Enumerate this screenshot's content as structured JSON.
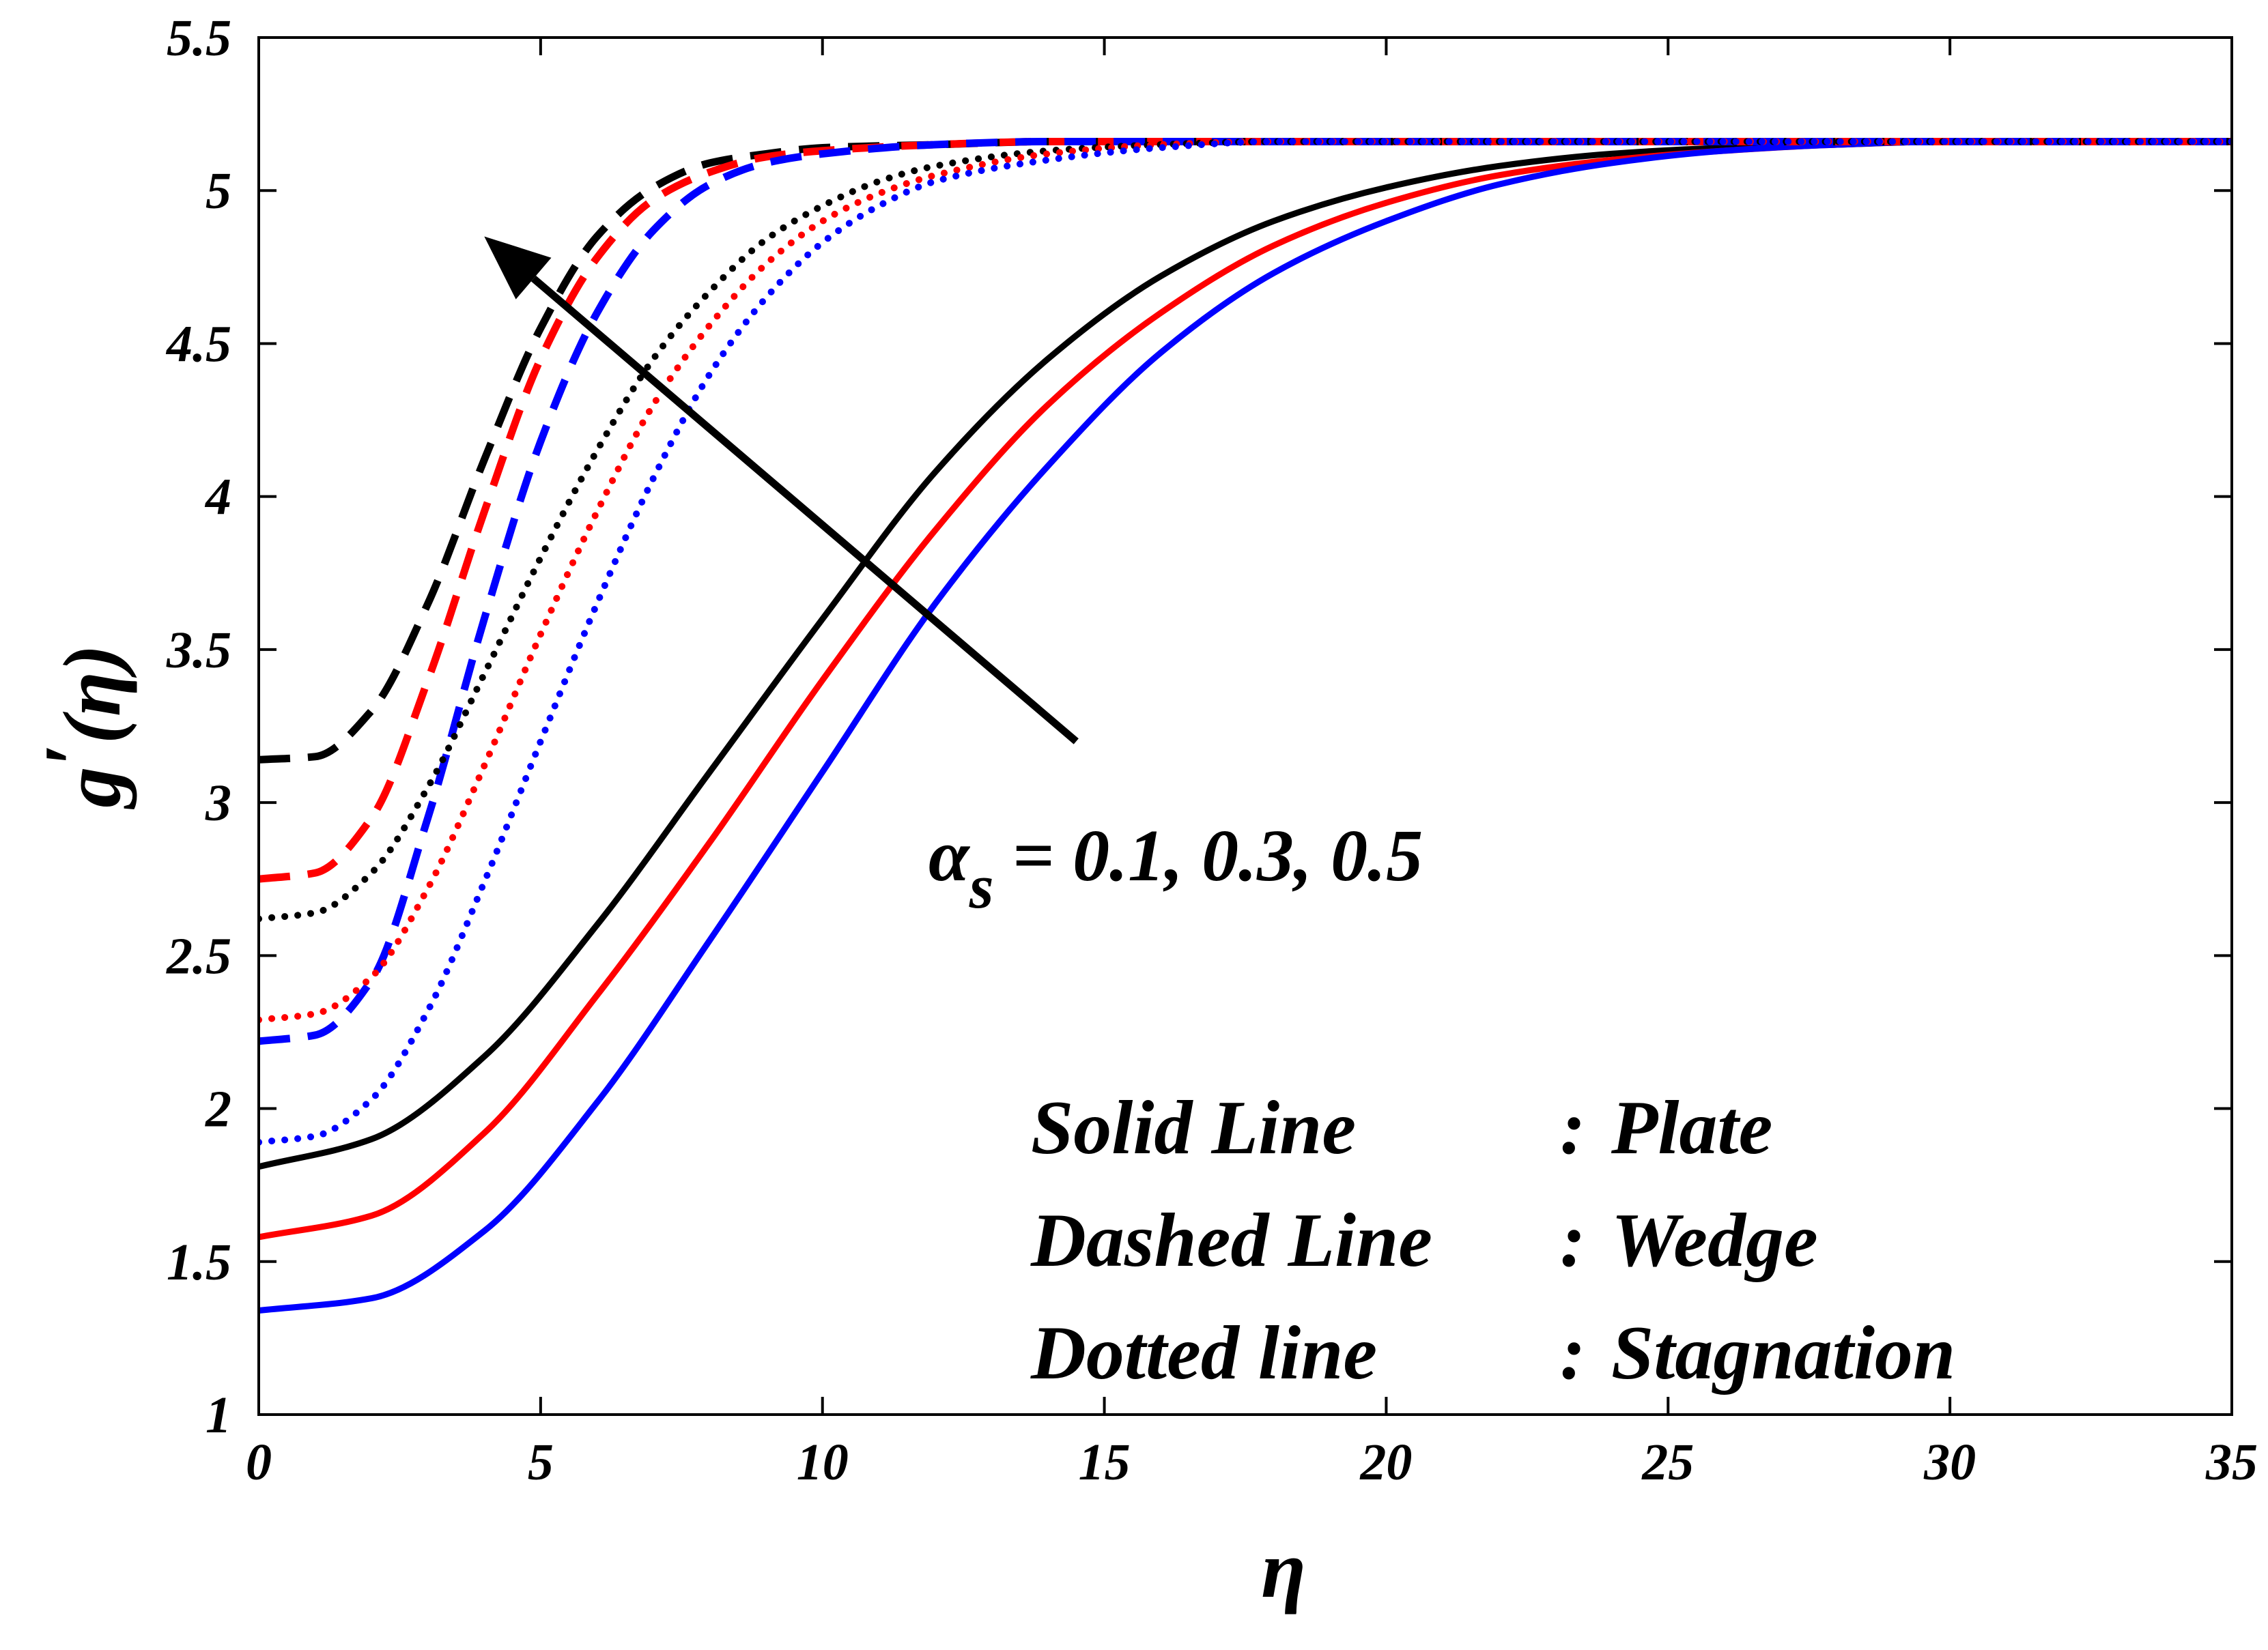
{
  "chart_data": {
    "type": "line",
    "title": "",
    "xlabel": "η",
    "ylabel_main": "g",
    "ylabel_prime": "′",
    "ylabel_arg": "(η)",
    "xlim": [
      0,
      35
    ],
    "ylim": [
      1,
      5.5
    ],
    "x_ticks": [
      0,
      5,
      10,
      15,
      20,
      25,
      30,
      35
    ],
    "y_ticks": [
      1,
      1.5,
      2,
      2.5,
      3,
      3.5,
      4,
      4.5,
      5,
      5.5
    ],
    "x_tick_labels": [
      "0",
      "5",
      "10",
      "15",
      "20",
      "25",
      "30",
      "35"
    ],
    "y_tick_labels": [
      "1",
      "1.5",
      "2",
      "2.5",
      "3",
      "3.5",
      "4",
      "4.5",
      "5",
      "5.5"
    ],
    "grid": false,
    "colors": {
      "black": "#000000",
      "red": "#ff0000",
      "blue": "#0000ff"
    },
    "series": [
      {
        "name": "Plate, αs = 0.5",
        "geometry": "Plate",
        "alpha_s": 0.5,
        "style": "solid",
        "color": "#000000",
        "x": [
          0,
          2,
          4,
          6,
          8,
          10,
          12,
          14,
          16,
          18,
          20,
          22,
          24,
          26,
          28,
          30,
          35
        ],
        "y": [
          1.81,
          1.9,
          2.17,
          2.6,
          3.1,
          3.6,
          4.08,
          4.45,
          4.72,
          4.9,
          5.01,
          5.08,
          5.12,
          5.14,
          5.15,
          5.16,
          5.16
        ]
      },
      {
        "name": "Plate, αs = 0.3",
        "geometry": "Plate",
        "alpha_s": 0.3,
        "style": "solid",
        "color": "#ff0000",
        "x": [
          0,
          2,
          4,
          6,
          8,
          10,
          12,
          14,
          16,
          18,
          20,
          22,
          24,
          26,
          28,
          30,
          35
        ],
        "y": [
          1.58,
          1.65,
          1.92,
          2.37,
          2.87,
          3.4,
          3.89,
          4.3,
          4.6,
          4.82,
          4.96,
          5.05,
          5.1,
          5.13,
          5.15,
          5.16,
          5.16
        ]
      },
      {
        "name": "Plate, αs = 0.1",
        "geometry": "Plate",
        "alpha_s": 0.1,
        "style": "solid",
        "color": "#0000ff",
        "x": [
          0,
          2,
          4,
          6,
          8,
          10,
          12,
          14,
          16,
          18,
          20,
          22,
          24,
          26,
          28,
          30,
          35
        ],
        "y": [
          1.34,
          1.38,
          1.6,
          2.02,
          2.55,
          3.1,
          3.65,
          4.1,
          4.47,
          4.73,
          4.9,
          5.02,
          5.09,
          5.13,
          5.15,
          5.16,
          5.16
        ]
      },
      {
        "name": "Wedge, αs = 0.5",
        "geometry": "Wedge",
        "alpha_s": 0.5,
        "style": "dashed",
        "color": "#000000",
        "x": [
          0,
          1,
          2,
          3,
          4,
          5,
          6,
          7,
          8,
          9,
          10,
          12,
          14,
          16,
          20,
          25,
          35
        ],
        "y": [
          3.14,
          3.15,
          3.3,
          3.65,
          4.12,
          4.55,
          4.85,
          5.01,
          5.09,
          5.12,
          5.14,
          5.15,
          5.16,
          5.16,
          5.16,
          5.16,
          5.16
        ]
      },
      {
        "name": "Wedge, αs = 0.3",
        "geometry": "Wedge",
        "alpha_s": 0.3,
        "style": "dashed",
        "color": "#ff0000",
        "x": [
          0,
          1,
          2,
          3,
          4,
          5,
          6,
          7,
          8,
          9,
          10,
          12,
          14,
          16,
          20,
          25,
          35
        ],
        "y": [
          2.75,
          2.77,
          2.95,
          3.4,
          3.95,
          4.45,
          4.78,
          4.97,
          5.06,
          5.11,
          5.13,
          5.15,
          5.16,
          5.16,
          5.16,
          5.16,
          5.16
        ]
      },
      {
        "name": "Wedge, αs = 0.1",
        "geometry": "Wedge",
        "alpha_s": 0.1,
        "style": "dashed",
        "color": "#0000ff",
        "x": [
          0,
          1,
          2,
          3,
          4,
          5,
          6,
          7,
          8,
          9,
          10,
          12,
          14,
          16,
          20,
          25,
          35
        ],
        "y": [
          2.22,
          2.24,
          2.42,
          2.95,
          3.6,
          4.18,
          4.6,
          4.87,
          5.02,
          5.09,
          5.12,
          5.15,
          5.16,
          5.16,
          5.16,
          5.16,
          5.16
        ]
      },
      {
        "name": "Stagnation, αs = 0.5",
        "geometry": "Stagnation",
        "alpha_s": 0.5,
        "style": "dotted",
        "color": "#000000",
        "x": [
          0,
          1,
          2,
          3,
          4,
          5,
          6,
          7,
          8,
          9,
          10,
          11,
          12,
          14,
          16,
          18,
          20,
          25,
          35
        ],
        "y": [
          2.62,
          2.64,
          2.77,
          3.05,
          3.42,
          3.8,
          4.15,
          4.45,
          4.67,
          4.84,
          4.95,
          5.03,
          5.08,
          5.13,
          5.15,
          5.16,
          5.16,
          5.16,
          5.16
        ]
      },
      {
        "name": "Stagnation, αs = 0.3",
        "geometry": "Stagnation",
        "alpha_s": 0.3,
        "style": "dotted",
        "color": "#ff0000",
        "x": [
          0,
          1,
          2,
          3,
          4,
          5,
          6,
          7,
          8,
          9,
          10,
          11,
          12,
          14,
          16,
          18,
          20,
          25,
          35
        ],
        "y": [
          2.29,
          2.31,
          2.43,
          2.72,
          3.12,
          3.55,
          3.95,
          4.3,
          4.56,
          4.76,
          4.9,
          4.99,
          5.05,
          5.12,
          5.15,
          5.16,
          5.16,
          5.16,
          5.16
        ]
      },
      {
        "name": "Stagnation, αs = 0.1",
        "geometry": "Stagnation",
        "alpha_s": 0.1,
        "style": "dotted",
        "color": "#0000ff",
        "x": [
          0,
          1,
          2,
          3,
          4,
          5,
          6,
          7,
          8,
          9,
          10,
          11,
          12,
          14,
          16,
          18,
          20,
          25,
          35
        ],
        "y": [
          1.89,
          1.91,
          2.03,
          2.32,
          2.74,
          3.2,
          3.65,
          4.06,
          4.4,
          4.65,
          4.83,
          4.95,
          5.03,
          5.1,
          5.14,
          5.16,
          5.16,
          5.16,
          5.16
        ]
      }
    ],
    "annotations": {
      "arrow_label_symbol": "α",
      "arrow_label_subscript": "s",
      "arrow_label_values": " = 0.1, 0.3, 0.5",
      "arrow": {
        "from": {
          "x": 14.5,
          "y": 3.2
        },
        "to": {
          "x": 4.0,
          "y": 4.85
        }
      },
      "legend": [
        {
          "label": "Solid Line",
          "separator": ":",
          "meaning": "Plate"
        },
        {
          "label": "Dashed Line",
          "separator": ":",
          "meaning": "Wedge"
        },
        {
          "label": "Dotted line",
          "separator": ":",
          "meaning": "Stagnation"
        }
      ]
    }
  }
}
